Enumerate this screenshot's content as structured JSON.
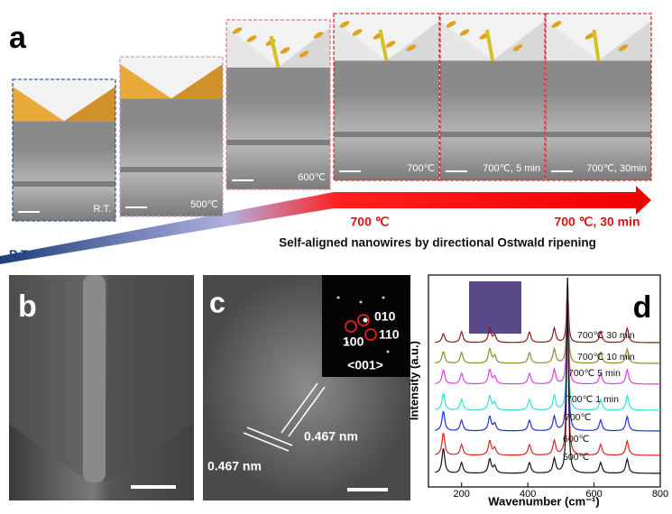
{
  "panel_a": {
    "label": "a",
    "tiles": [
      "R.T.",
      "500℃",
      "600℃",
      "700℃",
      "700℃, 5 min",
      "700℃, 30min"
    ],
    "arrow_start": "R.T.",
    "arrow_mid": "700 ℃",
    "arrow_end": "700 ℃, 30 min",
    "caption": "Self-aligned nanowires by directional Ostwald ripening"
  },
  "panel_b": {
    "label": "b"
  },
  "panel_c": {
    "label": "c",
    "diffraction_spots": [
      "010",
      "100",
      "110"
    ],
    "zone_axis": "<001>",
    "d_spacings": [
      "0.467 nm",
      "0.467 nm"
    ]
  },
  "panel_d": {
    "label": "d",
    "y_label": "Intensity (a.u.)",
    "x_label": "Wavenumber (cm⁻¹)",
    "xlim": [
      100,
      800
    ],
    "xticks": [
      200,
      400,
      600,
      800
    ],
    "peaks": [
      145,
      200,
      285,
      300,
      405,
      480,
      520,
      620,
      700
    ],
    "series": [
      {
        "name": "700℃ 30 min",
        "color": "#8b1a1a"
      },
      {
        "name": "700℃ 10 min",
        "color": "#8f8a2a"
      },
      {
        "name": "700℃ 5 min",
        "color": "#e040e0"
      },
      {
        "name": "700℃ 1 min",
        "color": "#30e0e0"
      },
      {
        "name": "700℃",
        "color": "#2030d0"
      },
      {
        "name": "600℃",
        "color": "#e02020"
      },
      {
        "name": "500℃",
        "color": "#111111"
      }
    ]
  }
}
